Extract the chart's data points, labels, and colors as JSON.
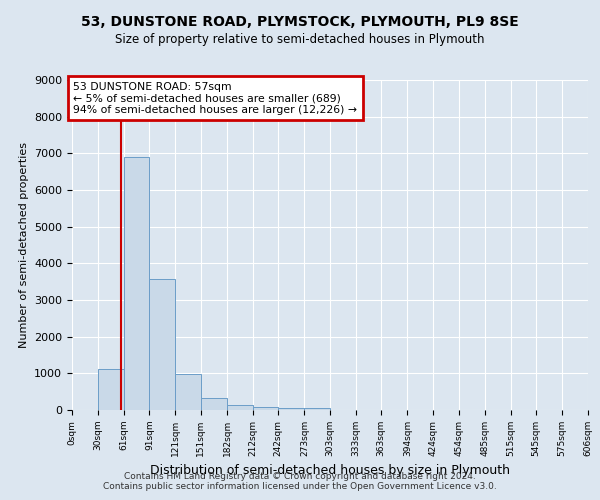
{
  "title": "53, DUNSTONE ROAD, PLYMSTOCK, PLYMOUTH, PL9 8SE",
  "subtitle": "Size of property relative to semi-detached houses in Plymouth",
  "xlabel": "Distribution of semi-detached houses by size in Plymouth",
  "ylabel": "Number of semi-detached properties",
  "bar_color": "#c9d9e8",
  "bar_edge_color": "#6b9dc8",
  "background_color": "#dce6f0",
  "plot_bg_color": "#dce6f0",
  "grid_color": "#ffffff",
  "annotation_box_color": "#cc0000",
  "property_line_color": "#cc0000",
  "property_size": 57,
  "annotation_title": "53 DUNSTONE ROAD: 57sqm",
  "annotation_line1": "← 5% of semi-detached houses are smaller (689)",
  "annotation_line2": "94% of semi-detached houses are larger (12,226) →",
  "bins": [
    0,
    30,
    61,
    91,
    121,
    151,
    182,
    212,
    242,
    273,
    303,
    333,
    363,
    394,
    424,
    454,
    485,
    515,
    545,
    575,
    606
  ],
  "counts": [
    0,
    1130,
    6890,
    3560,
    970,
    320,
    130,
    80,
    60,
    60,
    0,
    0,
    0,
    0,
    0,
    0,
    0,
    0,
    0,
    0
  ],
  "ylim": [
    0,
    9000
  ],
  "yticks": [
    0,
    1000,
    2000,
    3000,
    4000,
    5000,
    6000,
    7000,
    8000,
    9000
  ],
  "footer_line1": "Contains HM Land Registry data © Crown copyright and database right 2024.",
  "footer_line2": "Contains public sector information licensed under the Open Government Licence v3.0."
}
